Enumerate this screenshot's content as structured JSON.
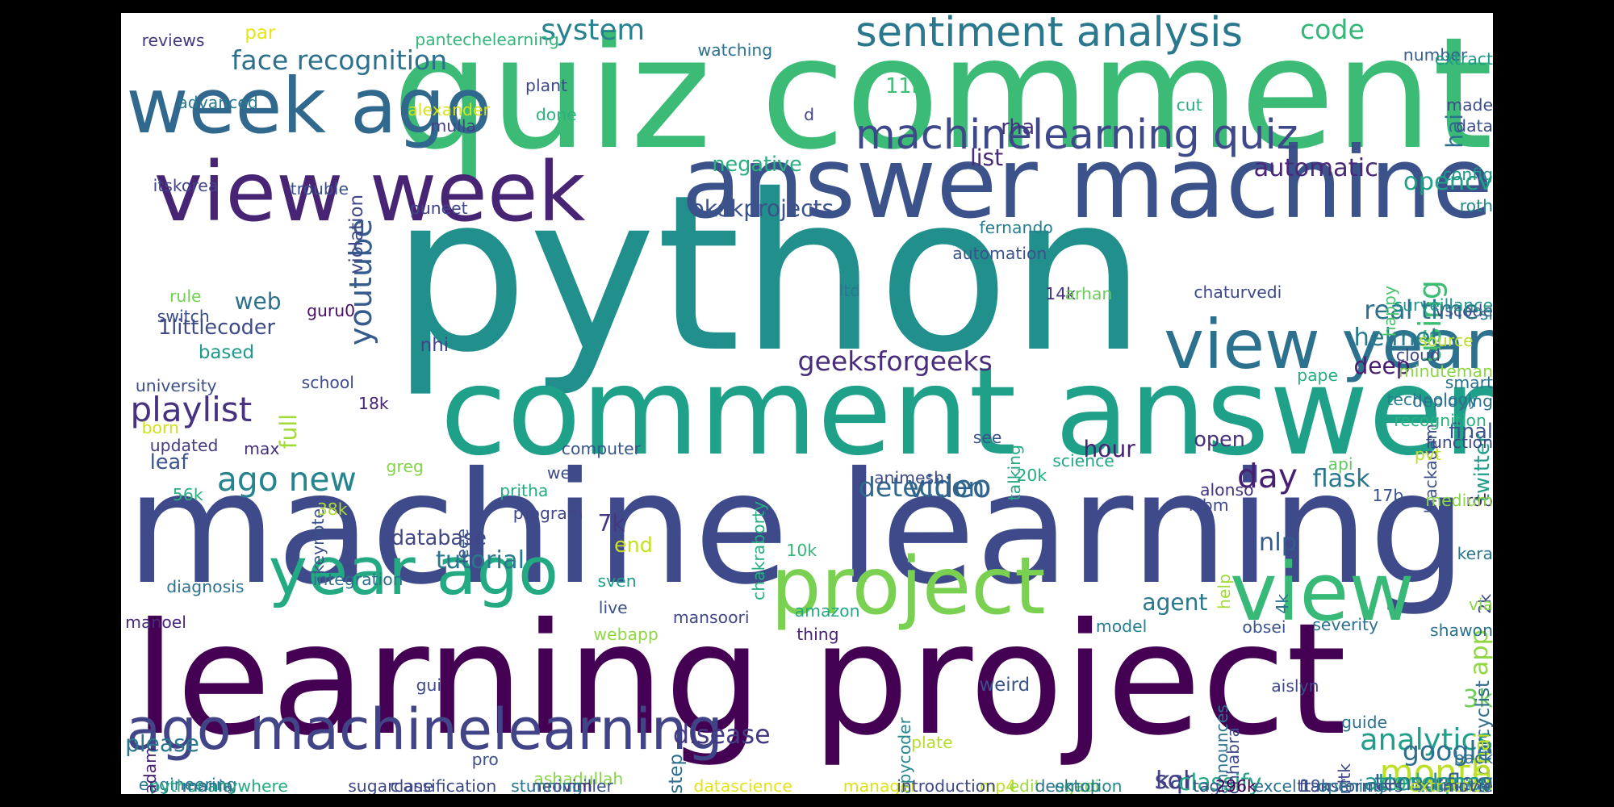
{
  "word_cloud": {
    "words": [
      {
        "text": "python",
        "color": "#21908d"
      },
      {
        "text": "machine learning",
        "color": "#3f4a8a"
      },
      {
        "text": "learning project",
        "color": "#440154"
      },
      {
        "text": "quiz comment",
        "color": "#3bbb75"
      },
      {
        "text": "comment answer",
        "color": "#1fa088"
      },
      {
        "text": "answer machine",
        "color": "#3b528b"
      },
      {
        "text": "view week",
        "color": "#482475"
      },
      {
        "text": "week ago",
        "color": "#31688e"
      },
      {
        "text": "view year",
        "color": "#2c728e"
      },
      {
        "text": "year ago",
        "color": "#24aa83"
      },
      {
        "text": "project",
        "color": "#7ad151"
      },
      {
        "text": "view",
        "color": "#38b977"
      },
      {
        "text": "ago machinelearning",
        "color": "#414487"
      },
      {
        "text": "machinelearning quiz",
        "color": "#3e4989"
      },
      {
        "text": "sentiment analysis",
        "color": "#2a788e"
      },
      {
        "text": "face recognition",
        "color": "#2d708e"
      },
      {
        "text": "system",
        "color": "#26828e"
      },
      {
        "text": "code",
        "color": "#35b779"
      },
      {
        "text": "playlist",
        "color": "#46327e"
      },
      {
        "text": "youtube",
        "color": "#365c8d"
      },
      {
        "text": "using",
        "color": "#3fbc73"
      },
      {
        "text": "month",
        "color": "#bddf26"
      },
      {
        "text": "analytics",
        "color": "#1f9e89"
      },
      {
        "text": "video",
        "color": "#33638d"
      },
      {
        "text": "geeksforgeeks",
        "color": "#472d7b"
      },
      {
        "text": "ago new",
        "color": "#25848e"
      },
      {
        "text": "okokprojects",
        "color": "#3b528b"
      },
      {
        "text": "automatic",
        "color": "#482878"
      },
      {
        "text": "opencv",
        "color": "#1fa188"
      },
      {
        "text": "real time",
        "color": "#2c728e"
      },
      {
        "text": "helmet",
        "color": "#287c8e"
      },
      {
        "text": "google",
        "color": "#2e6e8e"
      },
      {
        "text": "disease",
        "color": "#443983"
      },
      {
        "text": "detection",
        "color": "#31688e"
      },
      {
        "text": "tutorial",
        "color": "#2a788e"
      },
      {
        "text": "database",
        "color": "#404688"
      },
      {
        "text": "day",
        "color": "#482071"
      },
      {
        "text": "list",
        "color": "#482979"
      },
      {
        "text": "hai",
        "color": "#2d708e"
      },
      {
        "text": "7k",
        "color": "#453882"
      },
      {
        "text": "nlp",
        "color": "#375a8c"
      },
      {
        "text": "flask",
        "color": "#2a768e"
      },
      {
        "text": "deep",
        "color": "#481d6f"
      },
      {
        "text": "3k",
        "color": "#6ece58"
      },
      {
        "text": "app",
        "color": "#8fd744"
      },
      {
        "text": "kar",
        "color": "#3e4a89"
      },
      {
        "text": "sql",
        "color": "#433e85"
      },
      {
        "text": "coderpros",
        "color": "#37b878"
      },
      {
        "text": "tensorflow",
        "color": "#355f8d"
      },
      {
        "text": "attendance",
        "color": "#1f968b"
      },
      {
        "text": "classify",
        "color": "#22a785"
      },
      {
        "text": "motorcyclist",
        "color": "#2f6c8e"
      },
      {
        "text": "agent",
        "color": "#2a788e"
      },
      {
        "text": "hour",
        "color": "#482173"
      },
      {
        "text": "open",
        "color": "#46307e"
      },
      {
        "text": "end",
        "color": "#c8e020"
      },
      {
        "text": "full",
        "color": "#a2da37"
      },
      {
        "text": "leaf",
        "color": "#3b528b"
      },
      {
        "text": "web",
        "color": "#2d708e"
      },
      {
        "text": "1littlecoder",
        "color": "#3e4a89"
      },
      {
        "text": "nhi",
        "color": "#404588"
      },
      {
        "text": "based",
        "color": "#1f9a8a"
      },
      {
        "text": "please",
        "color": "#2a778e"
      },
      {
        "text": "negative",
        "color": "#29af7f"
      },
      {
        "text": "11k",
        "color": "#3dbc74"
      },
      {
        "text": "rha",
        "color": "#46337f"
      },
      {
        "text": "step",
        "color": "#2e6e8e"
      },
      {
        "text": "final",
        "color": "#3a548c"
      },
      {
        "text": "bhai",
        "color": "#bddf26"
      },
      {
        "text": "violation",
        "color": "#3f4788"
      },
      {
        "text": "twitter",
        "color": "#1f9f88"
      },
      {
        "text": "weird",
        "color": "#3b528b"
      },
      {
        "text": "reviews",
        "color": "#453781"
      },
      {
        "text": "par",
        "color": "#e7e419"
      },
      {
        "text": "pantechelearning",
        "color": "#34b679"
      },
      {
        "text": "watching",
        "color": "#2c718e"
      },
      {
        "text": "number",
        "color": "#355e8d"
      },
      {
        "text": "extract",
        "color": "#1f998a"
      },
      {
        "text": "advanced",
        "color": "#297a8e"
      },
      {
        "text": "mulla",
        "color": "#414287"
      },
      {
        "text": "alexander",
        "color": "#d8e219"
      },
      {
        "text": "plant",
        "color": "#3f4889"
      },
      {
        "text": "done",
        "color": "#2db27d"
      },
      {
        "text": "d",
        "color": "#414487"
      },
      {
        "text": "cut",
        "color": "#27ad81"
      },
      {
        "text": "made",
        "color": "#3e4c8a"
      },
      {
        "text": "data",
        "color": "#3d4e8a"
      },
      {
        "text": "config",
        "color": "#1f9a8a"
      },
      {
        "text": "itskorea",
        "color": "#404588"
      },
      {
        "text": "trouble",
        "color": "#3b518b"
      },
      {
        "text": "puneet",
        "color": "#3f4788"
      },
      {
        "text": "fernando",
        "color": "#277f8e"
      },
      {
        "text": "roth",
        "color": "#24878e"
      },
      {
        "text": "automation",
        "color": "#3b528b"
      },
      {
        "text": "ltd",
        "color": "#29798e"
      },
      {
        "text": "14k",
        "color": "#46337f"
      },
      {
        "text": "arhan",
        "color": "#6ccd5a"
      },
      {
        "text": "chaturvedi",
        "color": "#3e4989"
      },
      {
        "text": "happy",
        "color": "#4ac16d"
      },
      {
        "text": "vscode",
        "color": "#3e4c8a"
      },
      {
        "text": "surveillance",
        "color": "#1f968b"
      },
      {
        "text": "sl",
        "color": "#297b8e"
      },
      {
        "text": "rule",
        "color": "#73d056"
      },
      {
        "text": "switch",
        "color": "#3d4e8a"
      },
      {
        "text": "guru0",
        "color": "#471063"
      },
      {
        "text": "school",
        "color": "#3e4c8a"
      },
      {
        "text": "university",
        "color": "#3d4e8a"
      },
      {
        "text": "18k",
        "color": "#482475"
      },
      {
        "text": "cloud",
        "color": "#3e4989"
      },
      {
        "text": "source",
        "color": "#b8de29"
      },
      {
        "text": "minuteman",
        "color": "#8bd646"
      },
      {
        "text": "smart",
        "color": "#2c728e"
      },
      {
        "text": "blackadam",
        "color": "#3b528b"
      },
      {
        "text": "talking",
        "color": "#22a884"
      },
      {
        "text": "pape",
        "color": "#26ad81"
      },
      {
        "text": "technology",
        "color": "#287d8e"
      },
      {
        "text": "recognition",
        "color": "#2ab07f"
      },
      {
        "text": "function",
        "color": "#3e4989"
      },
      {
        "text": "deploying",
        "color": "#2c728e"
      },
      {
        "text": "born",
        "color": "#d0e11c"
      },
      {
        "text": "updated",
        "color": "#443b84"
      },
      {
        "text": "max",
        "color": "#46327e"
      },
      {
        "text": "see",
        "color": "#3b528b"
      },
      {
        "text": "animesh",
        "color": "#3e4c8a"
      },
      {
        "text": "computer",
        "color": "#39568c"
      },
      {
        "text": "science",
        "color": "#22a785"
      },
      {
        "text": "api",
        "color": "#60ca60"
      },
      {
        "text": "pvt",
        "color": "#c0df25"
      },
      {
        "text": "keynote",
        "color": "#3b528b"
      },
      {
        "text": "greg",
        "color": "#84d44b"
      },
      {
        "text": "wes",
        "color": "#3e4a89"
      },
      {
        "text": "pritha",
        "color": "#25ab82"
      },
      {
        "text": "chakraborty",
        "color": "#27ad81"
      },
      {
        "text": "20k",
        "color": "#25ab82"
      },
      {
        "text": "alonso",
        "color": "#46317e"
      },
      {
        "text": "56k",
        "color": "#2ab07f"
      },
      {
        "text": "38k",
        "color": "#addc30"
      },
      {
        "text": "ieee",
        "color": "#3b528b"
      },
      {
        "text": "program",
        "color": "#404688"
      },
      {
        "text": "icbm",
        "color": "#3e4989"
      },
      {
        "text": "17b",
        "color": "#3b528b"
      },
      {
        "text": "rob",
        "color": "#482475"
      },
      {
        "text": "medium",
        "color": "#8bd646"
      },
      {
        "text": "diagnosis",
        "color": "#2c718e"
      },
      {
        "text": "integration",
        "color": "#2e6f8e"
      },
      {
        "text": "10k",
        "color": "#35b779"
      },
      {
        "text": "sven",
        "color": "#1f9e89"
      },
      {
        "text": "help",
        "color": "#a2da37"
      },
      {
        "text": "4k",
        "color": "#2c728e"
      },
      {
        "text": "kera",
        "color": "#2a788e"
      },
      {
        "text": "2k",
        "color": "#3f4889"
      },
      {
        "text": "manoel",
        "color": "#482878"
      },
      {
        "text": "live",
        "color": "#3b528b"
      },
      {
        "text": "mansoori",
        "color": "#3f4889"
      },
      {
        "text": "amazon",
        "color": "#22a785"
      },
      {
        "text": "webapp",
        "color": "#90d743"
      },
      {
        "text": "thing",
        "color": "#482374"
      },
      {
        "text": "model",
        "color": "#277e8e"
      },
      {
        "text": "obsei",
        "color": "#3b528b"
      },
      {
        "text": "severity",
        "color": "#2c728e"
      },
      {
        "text": "via",
        "color": "#8bd646"
      },
      {
        "text": "shawon",
        "color": "#2c728e"
      },
      {
        "text": "apycoder",
        "color": "#24868e"
      },
      {
        "text": "gui",
        "color": "#3e4a89"
      },
      {
        "text": "aislyn",
        "color": "#3f4889"
      },
      {
        "text": "guide",
        "color": "#2c728e"
      },
      {
        "text": "plate",
        "color": "#b5de2b"
      },
      {
        "text": "pro",
        "color": "#3b528b"
      },
      {
        "text": "ashadullah",
        "color": "#86d549"
      },
      {
        "text": "back",
        "color": "#2c728e"
      },
      {
        "text": "engineering",
        "color": "#2a788e"
      },
      {
        "text": "chhabra",
        "color": "#3e4989"
      },
      {
        "text": "nltk",
        "color": "#3e4989"
      },
      {
        "text": "pythonanywhere",
        "color": "#25ab82"
      },
      {
        "text": "classification",
        "color": "#3e4989"
      },
      {
        "text": "miller",
        "color": "#3b528b"
      },
      {
        "text": "announces",
        "color": "#2c718e"
      },
      {
        "text": "excel",
        "color": "#2c728e"
      },
      {
        "text": "manager",
        "color": "#dae319"
      },
      {
        "text": "technical",
        "color": "#2e6f8e"
      },
      {
        "text": "adam",
        "color": "#482475"
      },
      {
        "text": "neovim",
        "color": "#46327e"
      },
      {
        "text": "gadi",
        "color": "#84d44b"
      },
      {
        "text": "mp4",
        "color": "#c2df23"
      },
      {
        "text": "ft",
        "color": "#3e4989"
      },
      {
        "text": "19k",
        "color": "#3b528b"
      },
      {
        "text": "296k",
        "color": "#440154"
      },
      {
        "text": "transformers",
        "color": "#3e4c8a"
      },
      {
        "text": "online",
        "color": "#2c728e"
      },
      {
        "text": "extraction",
        "color": "#c2df23"
      },
      {
        "text": "edit",
        "color": "#9bd93c"
      },
      {
        "text": "desktop",
        "color": "#2d708e"
      },
      {
        "text": "opening",
        "color": "#2a788e"
      },
      {
        "text": "movie",
        "color": "#3b528b"
      },
      {
        "text": "mania",
        "color": "#2c728e"
      },
      {
        "text": "sugarcane",
        "color": "#3f4889"
      },
      {
        "text": "stunning",
        "color": "#2a788e"
      },
      {
        "text": "datascience",
        "color": "#e2e418"
      },
      {
        "text": "introduction",
        "color": "#3e4989"
      },
      {
        "text": "emotion",
        "color": "#24878e"
      },
      {
        "text": "tag",
        "color": "#3b528b"
      }
    ]
  }
}
